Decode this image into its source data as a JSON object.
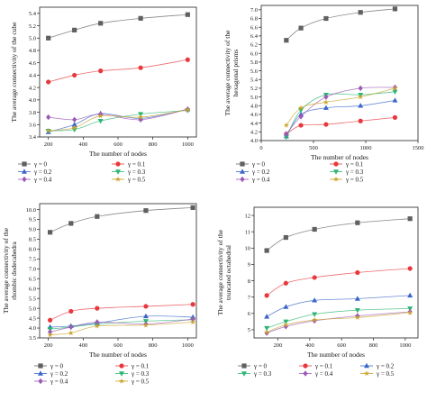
{
  "chart_data": [
    {
      "id": "cube",
      "type": "line",
      "xlabel": "The number of nodes",
      "ylabel": "The average connectivity of the cube",
      "xlim": [
        150,
        1050
      ],
      "ylim": [
        3.4,
        5.5
      ],
      "xticks": [
        200,
        400,
        600,
        800,
        1000
      ],
      "yticks": [
        3.4,
        3.6,
        3.8,
        4.0,
        4.2,
        4.4,
        4.6,
        4.8,
        5.0,
        5.2,
        5.4
      ],
      "tick_precision": 1,
      "legend_columns": 2,
      "series": [
        {
          "name": "γ = 0",
          "color": "#606060",
          "marker": "square",
          "x": [
            200,
            350,
            500,
            730,
            1000
          ],
          "y": [
            5.0,
            5.13,
            5.24,
            5.32,
            5.38
          ]
        },
        {
          "name": "γ = 0.1",
          "color": "#e8383d",
          "marker": "circle",
          "x": [
            200,
            350,
            500,
            730,
            1000
          ],
          "y": [
            4.29,
            4.4,
            4.47,
            4.52,
            4.65
          ]
        },
        {
          "name": "γ = 0.2",
          "color": "#3a66c8",
          "marker": "triangle-up",
          "x": [
            200,
            350,
            500,
            730,
            1000
          ],
          "y": [
            3.48,
            3.6,
            3.78,
            3.7,
            3.85
          ]
        },
        {
          "name": "γ = 0.3",
          "color": "#2bb673",
          "marker": "triangle-down",
          "x": [
            200,
            350,
            500,
            730,
            1000
          ],
          "y": [
            3.5,
            3.52,
            3.66,
            3.77,
            3.83
          ]
        },
        {
          "name": "γ = 0.4",
          "color": "#9b59b6",
          "marker": "diamond",
          "x": [
            200,
            350,
            500,
            730,
            1000
          ],
          "y": [
            3.72,
            3.68,
            3.77,
            3.68,
            3.85
          ]
        },
        {
          "name": "γ = 0.5",
          "color": "#c9a227",
          "marker": "star",
          "x": [
            200,
            350,
            500,
            730,
            1000
          ],
          "y": [
            3.5,
            3.55,
            3.74,
            3.72,
            3.84
          ]
        }
      ]
    },
    {
      "id": "hexagonal",
      "type": "line",
      "xlabel": "The number of nodes",
      "ylabel": "The average connectivity of the hexagonal prisms",
      "xlim": [
        0,
        1500
      ],
      "ylim": [
        4.0,
        7.1
      ],
      "xticks": [
        0,
        500,
        1000,
        1500
      ],
      "yticks": [
        4.0,
        4.2,
        4.4,
        4.6,
        4.8,
        5.0,
        5.2,
        5.4,
        5.6,
        5.8,
        6.0,
        6.2,
        6.4,
        6.6,
        6.8,
        7.0
      ],
      "tick_precision": 1,
      "legend_columns": 2,
      "series": [
        {
          "name": "γ = 0",
          "color": "#606060",
          "marker": "square",
          "x": [
            240,
            380,
            620,
            950,
            1280
          ],
          "y": [
            6.3,
            6.58,
            6.8,
            6.94,
            7.02
          ]
        },
        {
          "name": "γ = 0.1",
          "color": "#e8383d",
          "marker": "circle",
          "x": [
            240,
            380,
            620,
            950,
            1280
          ],
          "y": [
            4.15,
            4.35,
            4.37,
            4.45,
            4.53
          ]
        },
        {
          "name": "γ = 0.2",
          "color": "#3a66c8",
          "marker": "triangle-up",
          "x": [
            240,
            380,
            620,
            950,
            1280
          ],
          "y": [
            4.1,
            4.6,
            4.75,
            4.8,
            4.92
          ]
        },
        {
          "name": "γ = 0.3",
          "color": "#2bb673",
          "marker": "triangle-down",
          "x": [
            240,
            380,
            620,
            950,
            1280
          ],
          "y": [
            4.08,
            4.7,
            5.05,
            5.05,
            5.12
          ]
        },
        {
          "name": "γ = 0.4",
          "color": "#9b59b6",
          "marker": "diamond",
          "x": [
            240,
            380,
            620,
            950,
            1280
          ],
          "y": [
            4.15,
            4.55,
            5.0,
            5.2,
            5.22
          ]
        },
        {
          "name": "γ = 0.5",
          "color": "#c9a227",
          "marker": "star",
          "x": [
            240,
            380,
            620,
            950,
            1280
          ],
          "y": [
            4.35,
            4.75,
            4.88,
            5.0,
            5.2
          ]
        }
      ]
    },
    {
      "id": "rhombic",
      "type": "line",
      "xlabel": "The number of nodes",
      "ylabel": "The average connectivity of the rhombic dodecahedra",
      "xlim": [
        150,
        1050
      ],
      "ylim": [
        3.5,
        10.3
      ],
      "xticks": [
        200,
        400,
        600,
        800,
        1000
      ],
      "yticks": [
        3.5,
        4.0,
        4.5,
        5.0,
        5.5,
        6.0,
        6.5,
        7.0,
        7.5,
        8.0,
        8.5,
        9.0,
        9.5,
        10.0
      ],
      "tick_precision": 1,
      "legend_columns": 2,
      "series": [
        {
          "name": "γ = 0",
          "color": "#606060",
          "marker": "square",
          "x": [
            210,
            330,
            480,
            760,
            1030
          ],
          "y": [
            8.85,
            9.3,
            9.65,
            9.95,
            10.1
          ]
        },
        {
          "name": "γ = 0.1",
          "color": "#e8383d",
          "marker": "circle",
          "x": [
            210,
            330,
            480,
            760,
            1030
          ],
          "y": [
            4.4,
            4.85,
            5.0,
            5.1,
            5.2
          ]
        },
        {
          "name": "γ = 0.2",
          "color": "#3a66c8",
          "marker": "triangle-up",
          "x": [
            210,
            330,
            480,
            760,
            1030
          ],
          "y": [
            4.05,
            4.1,
            4.25,
            4.6,
            4.55
          ]
        },
        {
          "name": "γ = 0.3",
          "color": "#2bb673",
          "marker": "triangle-down",
          "x": [
            210,
            330,
            480,
            760,
            1030
          ],
          "y": [
            3.95,
            4.05,
            4.2,
            4.35,
            4.42
          ]
        },
        {
          "name": "γ = 0.4",
          "color": "#9b59b6",
          "marker": "diamond",
          "x": [
            210,
            330,
            480,
            760,
            1030
          ],
          "y": [
            3.8,
            4.05,
            4.3,
            4.2,
            4.45
          ]
        },
        {
          "name": "γ = 0.5",
          "color": "#c9a227",
          "marker": "star",
          "x": [
            210,
            330,
            480,
            760,
            1030
          ],
          "y": [
            3.65,
            3.75,
            4.1,
            4.15,
            4.3
          ]
        }
      ]
    },
    {
      "id": "truncated",
      "type": "line",
      "xlabel": "The number of nodes",
      "ylabel": "The average connectivity of the truncated octahedral",
      "xlim": [
        50,
        1080
      ],
      "ylim": [
        4.5,
        12.5
      ],
      "xticks": [
        200,
        400,
        600,
        800,
        1000
      ],
      "yticks": [
        5,
        6,
        7,
        8,
        9,
        10,
        11,
        12
      ],
      "tick_precision": 0,
      "legend_columns": 3,
      "series": [
        {
          "name": "γ = 0",
          "color": "#606060",
          "marker": "square",
          "x": [
            130,
            250,
            430,
            700,
            1030
          ],
          "y": [
            9.85,
            10.65,
            11.15,
            11.55,
            11.8
          ]
        },
        {
          "name": "γ = 0.1",
          "color": "#e8383d",
          "marker": "circle",
          "x": [
            130,
            250,
            430,
            700,
            1030
          ],
          "y": [
            7.1,
            7.85,
            8.2,
            8.5,
            8.75
          ]
        },
        {
          "name": "γ = 0.2",
          "color": "#3a66c8",
          "marker": "triangle-up",
          "x": [
            130,
            250,
            430,
            700,
            1030
          ],
          "y": [
            5.8,
            6.4,
            6.8,
            6.9,
            7.1
          ]
        },
        {
          "name": "γ = 0.3",
          "color": "#2bb673",
          "marker": "triangle-down",
          "x": [
            130,
            250,
            430,
            700,
            1030
          ],
          "y": [
            5.1,
            5.5,
            5.95,
            6.2,
            6.3
          ]
        },
        {
          "name": "γ = 0.4",
          "color": "#9b59b6",
          "marker": "diamond",
          "x": [
            130,
            250,
            430,
            700,
            1030
          ],
          "y": [
            4.8,
            5.2,
            5.55,
            5.85,
            6.1
          ]
        },
        {
          "name": "γ = 0.5",
          "color": "#c9a227",
          "marker": "star",
          "x": [
            130,
            250,
            430,
            700,
            1030
          ],
          "y": [
            4.85,
            5.3,
            5.6,
            5.75,
            6.05
          ]
        }
      ]
    }
  ]
}
